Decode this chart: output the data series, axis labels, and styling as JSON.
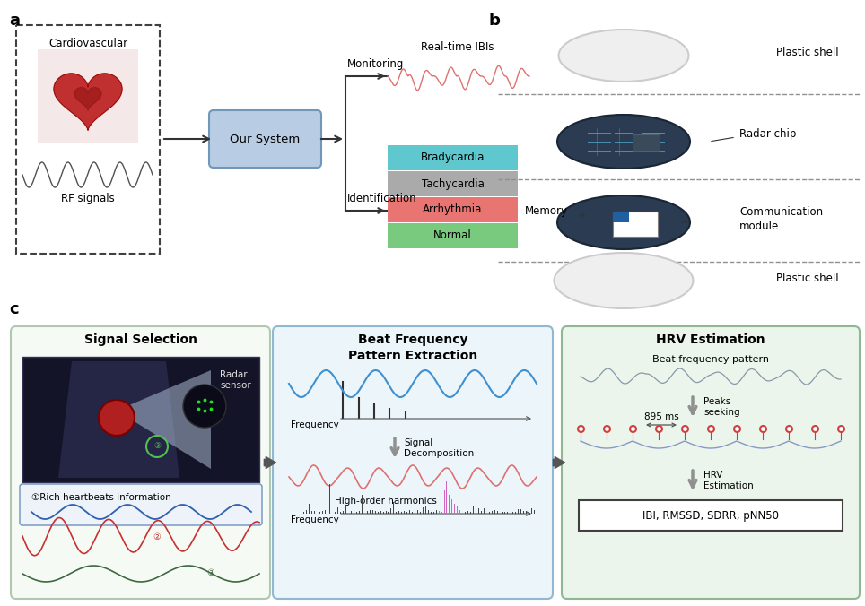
{
  "bg_color": "#FFFFFF",
  "panel_a_label": "a",
  "panel_b_label": "b",
  "panel_c_label": "c",
  "box_cardiovascular_text": "Cardiovascular",
  "box_rf_text": "RF signals",
  "box_system_text": "Our System",
  "monitoring_text": "Monitoring",
  "realtime_ibi_text": "Real-time IBIs",
  "identification_text": "Identification",
  "conditions": [
    "Bradycardia",
    "Tachycardia",
    "Arrhythmia",
    "Normal"
  ],
  "condition_colors": [
    "#5EC8CE",
    "#AAAAAA",
    "#E87572",
    "#79C97E"
  ],
  "b_labels_right": [
    "Plastic shell",
    "Radar chip",
    "Communication\nmodule",
    "Plastic shell"
  ],
  "b_label_left": "Memory",
  "c_panel1_title": "Signal Selection",
  "c_panel2_title": "Beat Frequency\nPattern Extraction",
  "c_panel3_title": "HRV Estimation",
  "radar_sensor_text": "Radar\nsensor",
  "rich_hb_text": "①Rich heartbeats information",
  "signal_decomp_text": "Signal\nDecomposition",
  "high_order_text": "High-order harmonics",
  "frequency_text": "Frequency",
  "beat_freq_text": "Beat frequency pattern",
  "peaks_seeking_text": "Peaks\nseeking",
  "ms_895_text": "895 ms",
  "hrv_est_text": "HRV\nEstimation",
  "ibi_box_text": "IBI, RMSSD, SDRR, pNN50",
  "system_box_color": "#B8CCE4",
  "system_box_edge": "#7096B8"
}
